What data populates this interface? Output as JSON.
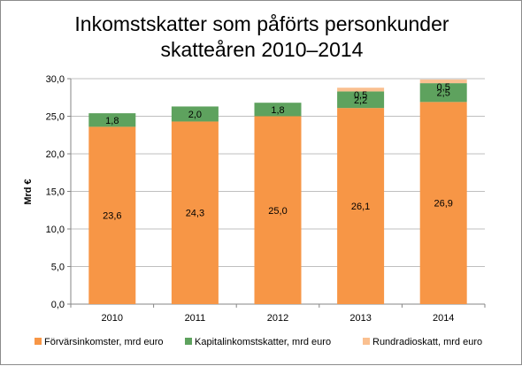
{
  "chart_data": {
    "type": "bar",
    "stacked": true,
    "title_lines": [
      "Inkomstskatter som påförts personkunder",
      "skatteåren 2010–2014"
    ],
    "xlabel": "",
    "ylabel": "Mrd €",
    "categories": [
      "2010",
      "2011",
      "2012",
      "2013",
      "2014"
    ],
    "ylim": [
      0,
      30
    ],
    "yticks": [
      "0,0",
      "5,0",
      "10,0",
      "15,0",
      "20,0",
      "25,0",
      "30,0"
    ],
    "ytick_values": [
      0,
      5,
      10,
      15,
      20,
      25,
      30
    ],
    "grid": true,
    "legend_position": "bottom",
    "series": [
      {
        "name": "Förvärsinkomster, mrd euro",
        "color": "#F79646",
        "values": [
          23.6,
          24.3,
          25.0,
          26.1,
          26.9
        ],
        "labels": [
          "23,6",
          "24,3",
          "25,0",
          "26,1",
          "26,9"
        ]
      },
      {
        "name": "Kapitalinkomstskatter, mrd euro",
        "color": "#5EA25E",
        "values": [
          1.8,
          2.0,
          1.8,
          2.2,
          2.5
        ],
        "labels": [
          "1,8",
          "2,0",
          "1,8",
          "2,2",
          "2,5"
        ]
      },
      {
        "name": "Rundradioskatt, mrd euro",
        "color": "#FAC090",
        "values": [
          0,
          0,
          0,
          0.5,
          0.5
        ],
        "labels": [
          "",
          "",
          "",
          "0,5",
          "0,5"
        ]
      }
    ]
  }
}
